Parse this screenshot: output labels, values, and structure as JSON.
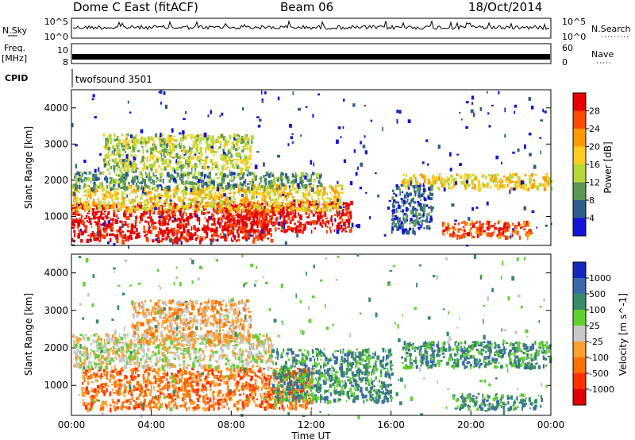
{
  "header": {
    "title": "Dome C East (fitACF)",
    "beam": "Beam 06",
    "date": "18/Oct/2014"
  },
  "nsky_panel": {
    "label": "N.Sky",
    "left_ticks": [
      "10^5",
      "10^0"
    ],
    "right_ticks": [
      "10^5",
      "10^0"
    ],
    "right_label": "N.Search"
  },
  "freq_panel": {
    "label_line1": "Freq.",
    "label_line2": "[MHz]",
    "left_ticks": [
      "10",
      "8"
    ],
    "right_ticks": [
      "60",
      "0"
    ],
    "right_label": "Nave"
  },
  "cpid": {
    "label": "CPID",
    "value": "twofsound 3501"
  },
  "x_axis": {
    "label": "Time UT",
    "ticks": [
      "00:00",
      "04:00",
      "08:00",
      "12:00",
      "16:00",
      "20:00",
      "00:00"
    ]
  },
  "chart_data": [
    {
      "type": "heatmap",
      "name": "Power",
      "ylabel": "Slant Range [km]",
      "yticks": [
        1000,
        2000,
        3000,
        4000
      ],
      "ylim": [
        200,
        4500
      ],
      "xlim": [
        0,
        24
      ],
      "colorbar": {
        "label": "Power [dB]",
        "ticks": [
          "28",
          "24",
          "20",
          "16",
          "12",
          "8",
          "4"
        ],
        "colors": [
          "#e60000",
          "#ff4a00",
          "#ff9a00",
          "#ffcc22",
          "#b6d835",
          "#5a9a55",
          "#2e5f8c",
          "#1414d8"
        ]
      },
      "bands": [
        {
          "t0": 0.0,
          "t1": 10.0,
          "r0": 350,
          "r1": 1400,
          "level": 0
        },
        {
          "t0": 7.5,
          "t1": 14.0,
          "r0": 600,
          "r1": 1450,
          "level": 0
        },
        {
          "t0": 0.0,
          "t1": 13.5,
          "r0": 1200,
          "r1": 1900,
          "level": 3
        },
        {
          "t0": 0.0,
          "t1": 12.5,
          "r0": 1800,
          "r1": 2250,
          "level": 5
        },
        {
          "t0": 1.5,
          "t1": 9.0,
          "r0": 2300,
          "r1": 3300,
          "level": 4
        },
        {
          "t0": 18.5,
          "t1": 23.0,
          "r0": 450,
          "r1": 900,
          "level": 1
        },
        {
          "t0": 16.5,
          "t1": 24.0,
          "r0": 1800,
          "r1": 2200,
          "level": 3
        },
        {
          "t0": 16.0,
          "t1": 18.0,
          "r0": 600,
          "r1": 1900,
          "level": 6
        },
        {
          "t0": 0.0,
          "t1": 24.0,
          "r0": 200,
          "r1": 4500,
          "level": 7
        }
      ]
    },
    {
      "type": "heatmap",
      "name": "Velocity",
      "ylabel": "Slant Range [km]",
      "yticks": [
        1000,
        2000,
        3000,
        4000
      ],
      "ylim": [
        200,
        4500
      ],
      "xlim": [
        0,
        24
      ],
      "colorbar": {
        "label": "Velocity [m s^-1]",
        "ticks": [
          "1000",
          "500",
          "100",
          "25",
          "-25",
          "-100",
          "-500",
          "-1000"
        ],
        "colors": [
          "#1428c0",
          "#3a6aa8",
          "#3a8a6a",
          "#5fd030",
          "#c8c8c8",
          "#ffa030",
          "#ff7000",
          "#ff3000",
          "#e00000"
        ]
      },
      "bands": [
        {
          "t0": 0.5,
          "t1": 12.0,
          "r0": 400,
          "r1": 1500,
          "level": 6
        },
        {
          "t0": 0.0,
          "t1": 10.0,
          "r0": 1500,
          "r1": 2400,
          "level": 4
        },
        {
          "t0": 3.0,
          "t1": 9.0,
          "r0": 2200,
          "r1": 3300,
          "level": 5
        },
        {
          "t0": 10.0,
          "t1": 16.0,
          "r0": 600,
          "r1": 2000,
          "level": 2
        },
        {
          "t0": 19.0,
          "t1": 23.5,
          "r0": 400,
          "r1": 800,
          "level": 2
        },
        {
          "t0": 16.5,
          "t1": 24.0,
          "r0": 1500,
          "r1": 2200,
          "level": 2
        },
        {
          "t0": 0.0,
          "t1": 24.0,
          "r0": 200,
          "r1": 4500,
          "level": 3
        }
      ]
    }
  ]
}
